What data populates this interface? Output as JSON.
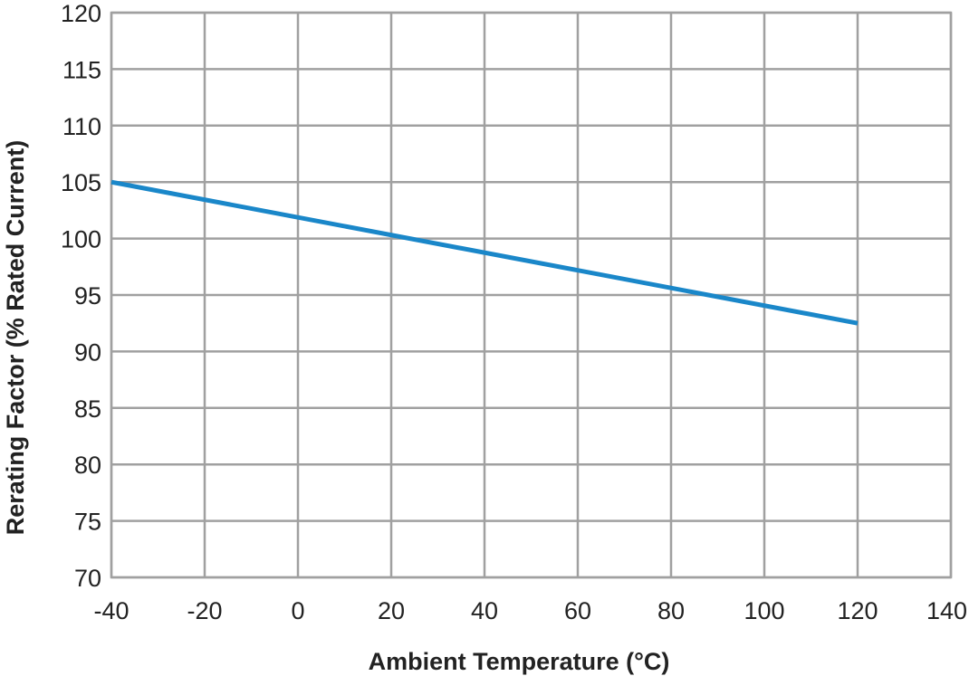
{
  "chart_data": {
    "type": "line",
    "title": "",
    "xlabel": "Ambient Temperature (°C)",
    "ylabel": "Rerating Factor (% Rated Current)",
    "xlim": [
      -40,
      140
    ],
    "ylim": [
      70,
      120
    ],
    "x_ticks": [
      -40,
      -20,
      0,
      20,
      40,
      60,
      80,
      100,
      120,
      140
    ],
    "y_ticks": [
      70,
      75,
      80,
      85,
      90,
      95,
      100,
      105,
      110,
      115,
      120
    ],
    "grid": true,
    "legend": "none",
    "series": [
      {
        "color": "#1a87c9",
        "x": [
          -40,
          120
        ],
        "y": [
          105,
          92.5
        ]
      }
    ]
  }
}
